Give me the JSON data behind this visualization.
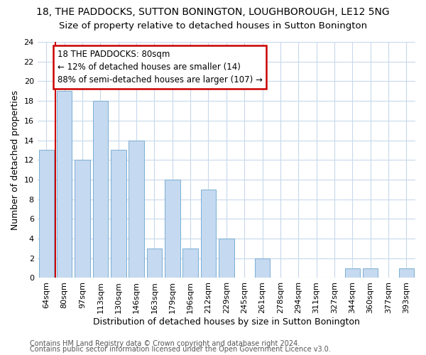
{
  "title": "18, THE PADDOCKS, SUTTON BONINGTON, LOUGHBOROUGH, LE12 5NG",
  "subtitle": "Size of property relative to detached houses in Sutton Bonington",
  "xlabel": "Distribution of detached houses by size in Sutton Bonington",
  "ylabel": "Number of detached properties",
  "categories": [
    "64sqm",
    "80sqm",
    "97sqm",
    "113sqm",
    "130sqm",
    "146sqm",
    "163sqm",
    "179sqm",
    "196sqm",
    "212sqm",
    "229sqm",
    "245sqm",
    "261sqm",
    "278sqm",
    "294sqm",
    "311sqm",
    "327sqm",
    "344sqm",
    "360sqm",
    "377sqm",
    "393sqm"
  ],
  "values": [
    13,
    19,
    12,
    18,
    13,
    14,
    3,
    10,
    3,
    9,
    4,
    0,
    2,
    0,
    0,
    0,
    0,
    1,
    1,
    0,
    1
  ],
  "bar_color": "#c5d9f0",
  "bar_edge_color": "#7aafd4",
  "highlight_index": 1,
  "highlight_line_color": "#cc0000",
  "ylim": [
    0,
    24
  ],
  "yticks": [
    0,
    2,
    4,
    6,
    8,
    10,
    12,
    14,
    16,
    18,
    20,
    22,
    24
  ],
  "annotation_text": "18 THE PADDOCKS: 80sqm\n← 12% of detached houses are smaller (14)\n88% of semi-detached houses are larger (107) →",
  "annotation_box_color": "#ffffff",
  "annotation_box_edge": "#cc0000",
  "footer1": "Contains HM Land Registry data © Crown copyright and database right 2024.",
  "footer2": "Contains public sector information licensed under the Open Government Licence v3.0.",
  "bg_color": "#ffffff",
  "plot_bg_color": "#ffffff",
  "grid_color": "#c8d8ec",
  "title_fontsize": 10,
  "subtitle_fontsize": 9.5,
  "label_fontsize": 9,
  "tick_fontsize": 8,
  "footer_fontsize": 7,
  "bar_width": 0.85
}
